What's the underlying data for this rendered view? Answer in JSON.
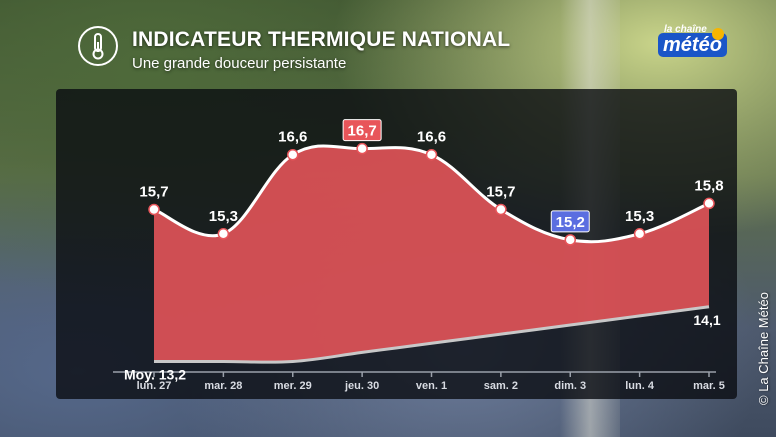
{
  "header": {
    "title": "INDICATEUR THERMIQUE NATIONAL",
    "subtitle": "Une grande douceur persistante"
  },
  "logo": {
    "top": "la chaîne",
    "main": "météo"
  },
  "copyright": "© La Chaîne Météo",
  "chart_data": {
    "type": "area",
    "categories": [
      "lun. 27",
      "mar. 28",
      "mer. 29",
      "jeu. 30",
      "ven. 1",
      "sam. 2",
      "dim. 3",
      "lun. 4",
      "mar. 5"
    ],
    "series": [
      {
        "values": [
          15.7,
          15.3,
          16.6,
          16.7,
          16.6,
          15.7,
          15.2,
          15.3,
          15.8
        ],
        "labels": [
          "15,7",
          "15,3",
          "16,6",
          "16,7",
          "16,6",
          "15,7",
          "15,2",
          "15,3",
          "15,8"
        ],
        "color": "#e8555a",
        "max_index": 3,
        "min_index": 6
      },
      {
        "values": [
          13.2,
          13.2,
          13.2,
          13.35,
          13.5,
          13.65,
          13.8,
          13.95,
          14.1
        ],
        "start_label": "Moy. 13,2",
        "end_label": "14,1",
        "color": "#c8c8c8"
      }
    ],
    "ylim": [
      12.6,
      17.5
    ],
    "max_badge_color": "#e8555a",
    "min_badge_color": "#5b6ee0"
  }
}
